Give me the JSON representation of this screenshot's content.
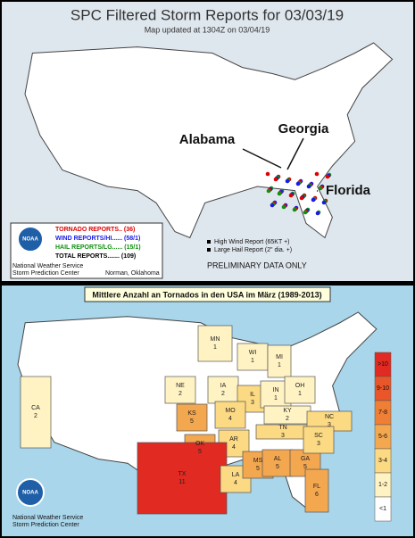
{
  "top_panel": {
    "title": "SPC Filtered Storm Reports for 03/03/19",
    "subtitle": "Map updated at 1304Z on 03/04/19",
    "annotations": [
      "Alabama",
      "Georgia",
      "Florida"
    ],
    "legend": [
      {
        "text": "TORNADO REPORTS.. (36)",
        "color": "#e00000"
      },
      {
        "text": "WIND REPORTS/HI...... (58/1)",
        "color": "#1a1ae6"
      },
      {
        "text": "HAIL REPORTS/LG...... (15/1)",
        "color": "#109010"
      },
      {
        "text": "TOTAL REPORTS....... (109)",
        "color": "#000000"
      }
    ],
    "logo": "NOAA",
    "office": [
      "National Weather Service",
      "Storm Prediction Center"
    ],
    "location": "Norman, Oklahoma",
    "key": [
      "High Wind Report (65KT +)",
      "Large Hail Report (2\" dia. +)"
    ],
    "footer": "PRELIMINARY DATA ONLY"
  },
  "bottom_panel": {
    "title": "Mittlere Anzahl an Tornados in den USA im März (1989-2013)",
    "states": [
      {
        "code": "MN",
        "count": 1,
        "color": "#fff3c4"
      },
      {
        "code": "WI",
        "count": 1,
        "color": "#fff3c4"
      },
      {
        "code": "MI",
        "count": 1,
        "color": "#fff3c4"
      },
      {
        "code": "NE",
        "count": 2,
        "color": "#fff3c4"
      },
      {
        "code": "IA",
        "count": 2,
        "color": "#fff3c4"
      },
      {
        "code": "IL",
        "count": 3,
        "color": "#fcd983"
      },
      {
        "code": "IN",
        "count": 1,
        "color": "#fff3c4"
      },
      {
        "code": "OH",
        "count": 1,
        "color": "#fff3c4"
      },
      {
        "code": "KS",
        "count": 5,
        "color": "#f3a74f"
      },
      {
        "code": "MO",
        "count": 4,
        "color": "#fcd983"
      },
      {
        "code": "KY",
        "count": 2,
        "color": "#fff3c4"
      },
      {
        "code": "CA",
        "count": 2,
        "color": "#fff3c4"
      },
      {
        "code": "OK",
        "count": 5,
        "color": "#f3a74f"
      },
      {
        "code": "AR",
        "count": 4,
        "color": "#fcd983"
      },
      {
        "code": "TN",
        "count": 3,
        "color": "#fcd983"
      },
      {
        "code": "NC",
        "count": 3,
        "color": "#fcd983"
      },
      {
        "code": "TX",
        "count": 11,
        "color": "#e02a22"
      },
      {
        "code": "LA",
        "count": 4,
        "color": "#fcd983"
      },
      {
        "code": "MS",
        "count": 5,
        "color": "#f3a74f"
      },
      {
        "code": "AL",
        "count": 5,
        "color": "#f3a74f"
      },
      {
        "code": "GA",
        "count": 5,
        "color": "#f3a74f"
      },
      {
        "code": "SC",
        "count": 3,
        "color": "#fcd983"
      },
      {
        "code": "FL",
        "count": 6,
        "color": "#f3a74f"
      }
    ],
    "scale": [
      {
        "label": ">10",
        "color": "#e02a22"
      },
      {
        "label": "9-10",
        "color": "#e9562a"
      },
      {
        "label": "7-8",
        "color": "#f07f36"
      },
      {
        "label": "5-6",
        "color": "#f3a74f"
      },
      {
        "label": "3-4",
        "color": "#fcd983"
      },
      {
        "label": "1-2",
        "color": "#fff3c4"
      },
      {
        "label": "<1",
        "color": "#ffffff"
      }
    ],
    "logo": "NOAA",
    "office": [
      "National Weather Service",
      "Storm Prediction Center"
    ]
  }
}
